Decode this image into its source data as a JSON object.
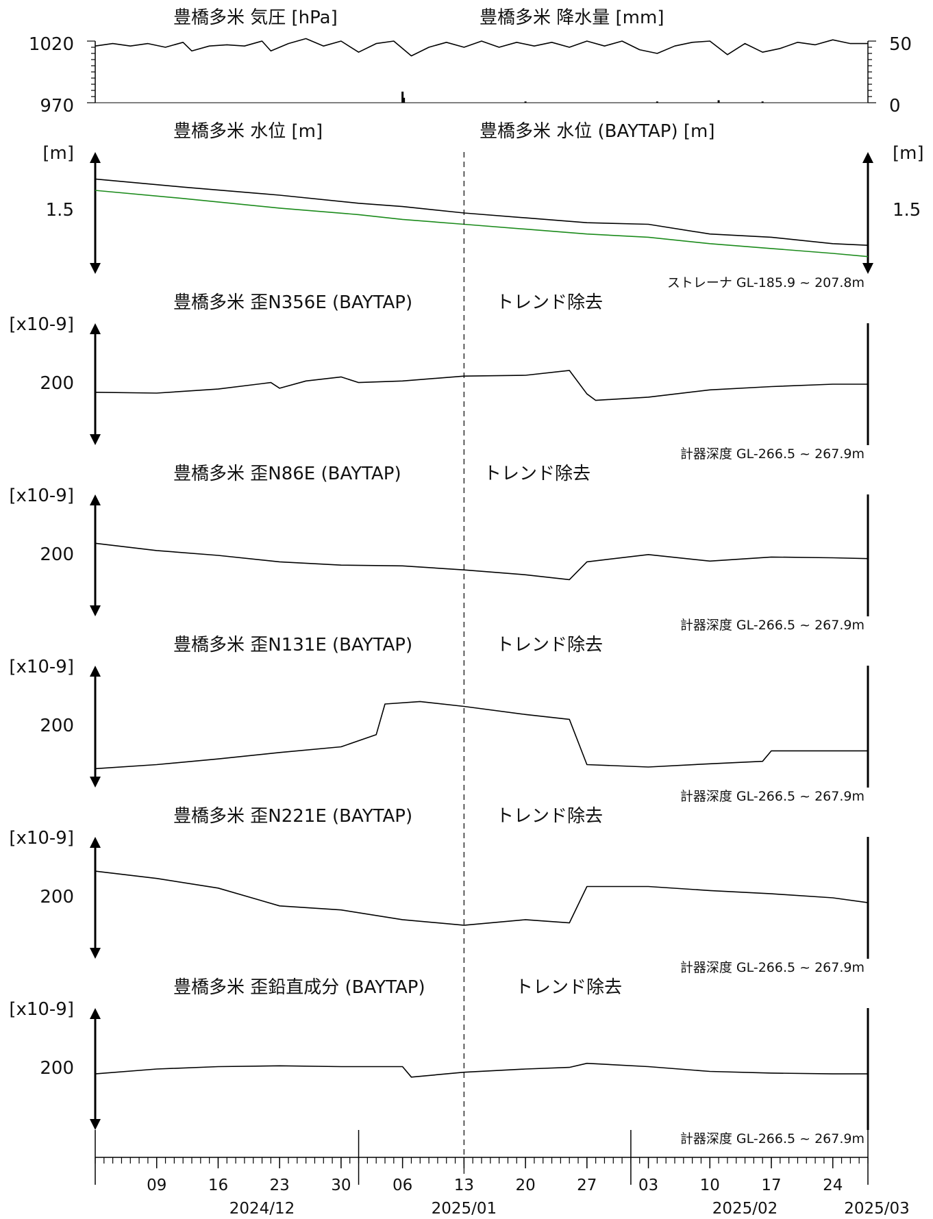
{
  "chart_data": {
    "type": "line",
    "x_range": [
      "2024-12-02",
      "2025-02-28"
    ],
    "vline_date": "2025-01-13",
    "x_axis": {
      "day_labels": [
        {
          "date": "2024-12-09",
          "label": "09"
        },
        {
          "date": "2024-12-16",
          "label": "16"
        },
        {
          "date": "2024-12-23",
          "label": "23"
        },
        {
          "date": "2024-12-30",
          "label": "30"
        },
        {
          "date": "2025-01-06",
          "label": "06"
        },
        {
          "date": "2025-01-13",
          "label": "13"
        },
        {
          "date": "2025-01-20",
          "label": "20"
        },
        {
          "date": "2025-01-27",
          "label": "27"
        },
        {
          "date": "2025-02-03",
          "label": "03"
        },
        {
          "date": "2025-02-10",
          "label": "10"
        },
        {
          "date": "2025-02-17",
          "label": "17"
        },
        {
          "date": "2025-02-24",
          "label": "24"
        }
      ],
      "month_labels": [
        {
          "date": "2024-12-21",
          "label": "2024/12"
        },
        {
          "date": "2025-01-13",
          "label": "2025/01"
        },
        {
          "date": "2025-02-14",
          "label": "2025/02"
        },
        {
          "date": "2025-03-01",
          "label": "2025/03"
        }
      ],
      "month_boundaries": [
        "2025-01-01",
        "2025-02-01"
      ]
    },
    "panels": [
      {
        "id": "pressure-rain",
        "title_left": "豊橋多米 気圧 [hPa]",
        "title_right": "豊橋多米 降水量 [mm]",
        "left_ticks": [
          "1020",
          "970"
        ],
        "right_ticks": [
          "50",
          "0"
        ],
        "ylim_left": [
          970,
          1020
        ],
        "ylim_right": [
          0,
          50
        ],
        "series": [
          {
            "axis": "left",
            "color": "#000000",
            "points": [
              [
                "2024-12-02",
                1016
              ],
              [
                "2024-12-04",
                1018
              ],
              [
                "2024-12-06",
                1016
              ],
              [
                "2024-12-08",
                1018
              ],
              [
                "2024-12-10",
                1015
              ],
              [
                "2024-12-12",
                1019
              ],
              [
                "2024-12-13",
                1012
              ],
              [
                "2024-12-15",
                1016
              ],
              [
                "2024-12-17",
                1017
              ],
              [
                "2024-12-19",
                1016
              ],
              [
                "2024-12-21",
                1020
              ],
              [
                "2024-12-22",
                1012
              ],
              [
                "2024-12-24",
                1018
              ],
              [
                "2024-12-26",
                1022
              ],
              [
                "2024-12-28",
                1016
              ],
              [
                "2024-12-30",
                1020
              ],
              [
                "2025-01-01",
                1011
              ],
              [
                "2025-01-03",
                1018
              ],
              [
                "2025-01-05",
                1020
              ],
              [
                "2025-01-07",
                1008
              ],
              [
                "2025-01-09",
                1015
              ],
              [
                "2025-01-11",
                1019
              ],
              [
                "2025-01-13",
                1015
              ],
              [
                "2025-01-15",
                1020
              ],
              [
                "2025-01-17",
                1015
              ],
              [
                "2025-01-19",
                1019
              ],
              [
                "2025-01-21",
                1016
              ],
              [
                "2025-01-23",
                1019
              ],
              [
                "2025-01-25",
                1015
              ],
              [
                "2025-01-27",
                1020
              ],
              [
                "2025-01-29",
                1016
              ],
              [
                "2025-01-31",
                1020
              ],
              [
                "2025-02-02",
                1013
              ],
              [
                "2025-02-04",
                1010
              ],
              [
                "2025-02-06",
                1016
              ],
              [
                "2025-02-08",
                1019
              ],
              [
                "2025-02-10",
                1020
              ],
              [
                "2025-02-12",
                1009
              ],
              [
                "2025-02-14",
                1018
              ],
              [
                "2025-02-16",
                1011
              ],
              [
                "2025-02-18",
                1014
              ],
              [
                "2025-02-20",
                1019
              ],
              [
                "2025-02-22",
                1017
              ],
              [
                "2025-02-24",
                1021
              ],
              [
                "2025-02-26",
                1018
              ],
              [
                "2025-02-28",
                1018
              ]
            ]
          }
        ],
        "bars": {
          "axis": "right",
          "color": "#000000",
          "points": [
            [
              "2025-01-06",
              9
            ],
            [
              "2025-01-06",
              4
            ],
            [
              "2025-01-20",
              1
            ],
            [
              "2025-02-04",
              1
            ],
            [
              "2025-02-11",
              2
            ],
            [
              "2025-02-16",
              1
            ]
          ]
        }
      },
      {
        "id": "water-level",
        "title_left": "豊橋多米 水位 [m]",
        "title_right": "豊橋多米 水位 (BAYTAP) [m]",
        "left_unit": "[m]",
        "right_unit": "[m]",
        "left_ticks": [
          "1.5"
        ],
        "right_ticks": [
          "1.5"
        ],
        "right_color": "#1a8a1a",
        "note": "ストレーナ GL-185.9 ~ 207.8m",
        "ylim_left": [
          1.2,
          1.7
        ],
        "series": [
          {
            "axis": "left",
            "color": "#000000",
            "points": [
              [
                "2024-12-02",
                1.66
              ],
              [
                "2024-12-12",
                1.61
              ],
              [
                "2024-12-23",
                1.56
              ],
              [
                "2025-01-01",
                1.51
              ],
              [
                "2025-01-06",
                1.49
              ],
              [
                "2025-01-13",
                1.45
              ],
              [
                "2025-01-20",
                1.42
              ],
              [
                "2025-01-27",
                1.39
              ],
              [
                "2025-02-03",
                1.38
              ],
              [
                "2025-02-10",
                1.32
              ],
              [
                "2025-02-17",
                1.3
              ],
              [
                "2025-02-24",
                1.26
              ],
              [
                "2025-02-28",
                1.25
              ]
            ]
          },
          {
            "axis": "left",
            "color": "#1a8a1a",
            "points": [
              [
                "2024-12-02",
                1.59
              ],
              [
                "2024-12-12",
                1.54
              ],
              [
                "2024-12-23",
                1.48
              ],
              [
                "2025-01-01",
                1.44
              ],
              [
                "2025-01-06",
                1.41
              ],
              [
                "2025-01-13",
                1.38
              ],
              [
                "2025-01-20",
                1.35
              ],
              [
                "2025-01-27",
                1.32
              ],
              [
                "2025-02-03",
                1.3
              ],
              [
                "2025-02-10",
                1.26
              ],
              [
                "2025-02-17",
                1.23
              ],
              [
                "2025-02-24",
                1.2
              ],
              [
                "2025-02-28",
                1.18
              ]
            ]
          }
        ]
      },
      {
        "id": "strain-n356e",
        "title_left": "豊橋多米 歪N356E (BAYTAP)",
        "title_right": "トレンド除去",
        "left_unit": "[x10-9]",
        "left_ticks": [
          "200"
        ],
        "note": "計器深度 GL-266.5 ~ 267.9m",
        "ylim_left": [
          160,
          260
        ],
        "series": [
          {
            "axis": "left",
            "color": "#000000",
            "points": [
              [
                "2024-12-02",
                200
              ],
              [
                "2024-12-09",
                199
              ],
              [
                "2024-12-16",
                204
              ],
              [
                "2024-12-22",
                212
              ],
              [
                "2024-12-23",
                205
              ],
              [
                "2024-12-26",
                214
              ],
              [
                "2024-12-30",
                219
              ],
              [
                "2025-01-01",
                212
              ],
              [
                "2025-01-06",
                214
              ],
              [
                "2025-01-13",
                220
              ],
              [
                "2025-01-20",
                221
              ],
              [
                "2025-01-25",
                227
              ],
              [
                "2025-01-27",
                198
              ],
              [
                "2025-01-28",
                190
              ],
              [
                "2025-02-03",
                194
              ],
              [
                "2025-02-10",
                203
              ],
              [
                "2025-02-17",
                207
              ],
              [
                "2025-02-24",
                210
              ],
              [
                "2025-02-28",
                210
              ]
            ]
          }
        ]
      },
      {
        "id": "strain-n86e",
        "title_left": "豊橋多米 歪N86E (BAYTAP)",
        "title_right": "トレンド除去",
        "left_unit": "[x10-9]",
        "left_ticks": [
          "200"
        ],
        "note": "計器深度 GL-266.5 ~ 267.9m",
        "ylim_left": [
          160,
          260
        ],
        "series": [
          {
            "axis": "left",
            "color": "#000000",
            "points": [
              [
                "2024-12-02",
                225
              ],
              [
                "2024-12-09",
                216
              ],
              [
                "2024-12-16",
                210
              ],
              [
                "2024-12-23",
                202
              ],
              [
                "2024-12-30",
                198
              ],
              [
                "2025-01-06",
                197
              ],
              [
                "2025-01-13",
                192
              ],
              [
                "2025-01-20",
                186
              ],
              [
                "2025-01-25",
                180
              ],
              [
                "2025-01-27",
                202
              ],
              [
                "2025-02-03",
                211
              ],
              [
                "2025-02-10",
                203
              ],
              [
                "2025-02-17",
                208
              ],
              [
                "2025-02-24",
                207
              ],
              [
                "2025-02-28",
                206
              ]
            ]
          }
        ]
      },
      {
        "id": "strain-n131e",
        "title_left": "豊橋多米 歪N131E (BAYTAP)",
        "title_right": "トレンド除去",
        "left_unit": "[x10-9]",
        "left_ticks": [
          "200"
        ],
        "note": "計器深度 GL-266.5 ~ 267.9m",
        "ylim_left": [
          160,
          260
        ],
        "series": [
          {
            "axis": "left",
            "color": "#000000",
            "points": [
              [
                "2024-12-02",
                158
              ],
              [
                "2024-12-09",
                163
              ],
              [
                "2024-12-16",
                170
              ],
              [
                "2024-12-23",
                178
              ],
              [
                "2024-12-30",
                185
              ],
              [
                "2025-01-03",
                200
              ],
              [
                "2025-01-04",
                238
              ],
              [
                "2025-01-08",
                241
              ],
              [
                "2025-01-13",
                235
              ],
              [
                "2025-01-20",
                225
              ],
              [
                "2025-01-25",
                219
              ],
              [
                "2025-01-27",
                163
              ],
              [
                "2025-02-03",
                160
              ],
              [
                "2025-02-10",
                164
              ],
              [
                "2025-02-16",
                167
              ],
              [
                "2025-02-17",
                180
              ],
              [
                "2025-02-24",
                180
              ],
              [
                "2025-02-28",
                180
              ]
            ]
          }
        ]
      },
      {
        "id": "strain-n221e",
        "title_left": "豊橋多米 歪N221E (BAYTAP)",
        "title_right": "トレンド除去",
        "left_unit": "[x10-9]",
        "left_ticks": [
          "200"
        ],
        "note": "計器深度 GL-266.5 ~ 267.9m",
        "ylim_left": [
          160,
          260
        ],
        "series": [
          {
            "axis": "left",
            "color": "#000000",
            "points": [
              [
                "2024-12-02",
                243
              ],
              [
                "2024-12-09",
                234
              ],
              [
                "2024-12-16",
                222
              ],
              [
                "2024-12-23",
                200
              ],
              [
                "2024-12-30",
                195
              ],
              [
                "2025-01-06",
                183
              ],
              [
                "2025-01-13",
                176
              ],
              [
                "2025-01-20",
                183
              ],
              [
                "2025-01-25",
                179
              ],
              [
                "2025-01-27",
                224
              ],
              [
                "2025-02-03",
                224
              ],
              [
                "2025-02-10",
                219
              ],
              [
                "2025-02-17",
                215
              ],
              [
                "2025-02-24",
                210
              ],
              [
                "2025-02-28",
                204
              ]
            ]
          }
        ]
      },
      {
        "id": "strain-vertical",
        "title_left": "豊橋多米 歪鉛直成分 (BAYTAP)",
        "title_right": "トレンド除去",
        "left_unit": "[x10-9]",
        "left_ticks": [
          "200"
        ],
        "note": "計器深度 GL-266.5 ~ 267.9m",
        "ylim_left": [
          160,
          260
        ],
        "series": [
          {
            "axis": "left",
            "color": "#000000",
            "points": [
              [
                "2024-12-02",
                204
              ],
              [
                "2024-12-09",
                210
              ],
              [
                "2024-12-16",
                213
              ],
              [
                "2024-12-23",
                214
              ],
              [
                "2024-12-30",
                213
              ],
              [
                "2025-01-06",
                213
              ],
              [
                "2025-01-07",
                200
              ],
              [
                "2025-01-13",
                206
              ],
              [
                "2025-01-20",
                210
              ],
              [
                "2025-01-25",
                212
              ],
              [
                "2025-01-27",
                217
              ],
              [
                "2025-02-03",
                213
              ],
              [
                "2025-02-10",
                207
              ],
              [
                "2025-02-17",
                205
              ],
              [
                "2025-02-24",
                204
              ],
              [
                "2025-02-28",
                204
              ]
            ]
          }
        ]
      }
    ]
  }
}
